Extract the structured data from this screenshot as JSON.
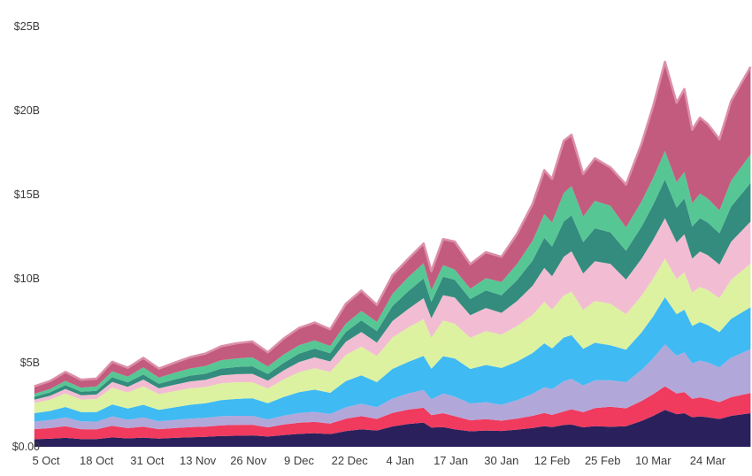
{
  "chart_data": {
    "type": "area",
    "stacked": true,
    "title": "",
    "xlabel": "",
    "ylabel": "",
    "background": "#ffffff",
    "grid": false,
    "legend": "none",
    "axis_label_color": "#3b3b3b",
    "ylim": [
      0,
      25
    ],
    "y_ticks": [
      {
        "value": 0,
        "label": "$0.00"
      },
      {
        "value": 5,
        "label": "$5B"
      },
      {
        "value": 10,
        "label": "$10B"
      },
      {
        "value": 15,
        "label": "$15B"
      },
      {
        "value": 20,
        "label": "$20B"
      },
      {
        "value": 25,
        "label": "$25B"
      }
    ],
    "x_unit": "days (day 0 = 2 Oct, daily series, values in $ billions)",
    "x_ticks": [
      {
        "day": 3,
        "label": "5 Oct"
      },
      {
        "day": 16,
        "label": "18 Oct"
      },
      {
        "day": 29,
        "label": "31 Oct"
      },
      {
        "day": 42,
        "label": "13 Nov"
      },
      {
        "day": 55,
        "label": "26 Nov"
      },
      {
        "day": 68,
        "label": "9 Dec"
      },
      {
        "day": 81,
        "label": "22 Dec"
      },
      {
        "day": 94,
        "label": "4 Jan"
      },
      {
        "day": 107,
        "label": "17 Jan"
      },
      {
        "day": 120,
        "label": "30 Jan"
      },
      {
        "day": 133,
        "label": "12 Feb"
      },
      {
        "day": 146,
        "label": "25 Feb"
      },
      {
        "day": 159,
        "label": "10 Mar"
      },
      {
        "day": 173,
        "label": "24 Mar"
      }
    ],
    "days": [
      0,
      4,
      8,
      12,
      16,
      20,
      24,
      28,
      32,
      36,
      40,
      44,
      48,
      52,
      56,
      60,
      64,
      68,
      72,
      76,
      80,
      84,
      88,
      92,
      96,
      100,
      102,
      105,
      108,
      112,
      116,
      120,
      124,
      128,
      131,
      133,
      136,
      138,
      141,
      144,
      148,
      152,
      156,
      159,
      162,
      165,
      167,
      169,
      171,
      173,
      176,
      179,
      184
    ],
    "top_edge_highlight": "#dc8fa8",
    "series": [
      {
        "name": "dark-navy",
        "color": "#2a215c",
        "values": [
          0.45,
          0.48,
          0.53,
          0.46,
          0.46,
          0.56,
          0.5,
          0.55,
          0.49,
          0.53,
          0.57,
          0.59,
          0.64,
          0.66,
          0.68,
          0.61,
          0.7,
          0.77,
          0.81,
          0.76,
          0.93,
          1.04,
          0.97,
          1.21,
          1.36,
          1.44,
          1.14,
          1.17,
          1.04,
          0.92,
          0.97,
          0.94,
          1.02,
          1.12,
          1.23,
          1.17,
          1.3,
          1.32,
          1.16,
          1.23,
          1.19,
          1.22,
          1.54,
          1.84,
          2.2,
          1.94,
          2.0,
          1.76,
          1.81,
          1.76,
          1.65,
          1.84,
          2.0
        ]
      },
      {
        "name": "crimson",
        "color": "#f03a5e",
        "values": [
          0.6,
          0.63,
          0.69,
          0.59,
          0.58,
          0.69,
          0.61,
          0.65,
          0.56,
          0.58,
          0.6,
          0.61,
          0.64,
          0.64,
          0.63,
          0.55,
          0.62,
          0.66,
          0.67,
          0.62,
          0.74,
          0.78,
          0.69,
          0.8,
          0.85,
          0.88,
          0.74,
          0.83,
          0.78,
          0.66,
          0.67,
          0.62,
          0.66,
          0.72,
          0.78,
          0.73,
          0.8,
          0.91,
          0.9,
          1.07,
          1.19,
          1.07,
          1.18,
          1.29,
          1.4,
          1.23,
          1.26,
          1.1,
          1.13,
          1.09,
          1.01,
          1.11,
          1.2
        ]
      },
      {
        "name": "lavender",
        "color": "#b2a7d9",
        "values": [
          0.45,
          0.48,
          0.53,
          0.46,
          0.46,
          0.56,
          0.5,
          0.55,
          0.47,
          0.49,
          0.51,
          0.52,
          0.54,
          0.54,
          0.53,
          0.47,
          0.53,
          0.58,
          0.6,
          0.57,
          0.68,
          0.75,
          0.7,
          0.86,
          0.96,
          1.06,
          0.95,
          1.17,
          1.17,
          1.0,
          1.01,
          0.94,
          1.1,
          1.31,
          1.54,
          1.53,
          1.8,
          1.82,
          1.58,
          1.65,
          1.58,
          1.55,
          1.86,
          2.15,
          2.5,
          2.25,
          2.36,
          2.1,
          2.19,
          2.16,
          2.07,
          2.35,
          2.6
        ]
      },
      {
        "name": "sky-blue",
        "color": "#3fbaf3",
        "values": [
          0.5,
          0.54,
          0.62,
          0.56,
          0.57,
          0.71,
          0.67,
          0.75,
          0.68,
          0.75,
          0.82,
          0.87,
          0.96,
          1.01,
          1.05,
          0.96,
          1.11,
          1.24,
          1.32,
          1.26,
          1.56,
          1.68,
          1.49,
          1.76,
          1.88,
          2.03,
          1.81,
          2.22,
          2.27,
          2.05,
          2.22,
          2.19,
          2.29,
          2.43,
          2.61,
          2.42,
          2.6,
          2.59,
          2.19,
          2.24,
          2.08,
          1.94,
          2.23,
          2.49,
          2.8,
          2.47,
          2.54,
          2.23,
          2.29,
          2.23,
          2.09,
          2.31,
          2.5
        ]
      },
      {
        "name": "pale-lime",
        "color": "#dcf2a0",
        "values": [
          0.6,
          0.67,
          0.8,
          0.74,
          0.77,
          0.99,
          0.95,
          1.1,
          0.93,
          0.96,
          0.98,
          0.97,
          1.0,
          0.99,
          0.95,
          0.88,
          1.04,
          1.19,
          1.27,
          1.24,
          1.55,
          1.71,
          1.55,
          1.87,
          2.04,
          2.18,
          1.85,
          2.12,
          2.06,
          1.86,
          2.01,
          1.99,
          2.11,
          2.26,
          2.46,
          2.31,
          2.5,
          2.59,
          2.31,
          2.49,
          2.47,
          2.11,
          2.18,
          2.25,
          2.3,
          2.1,
          2.21,
          1.99,
          2.09,
          2.08,
          2.02,
          2.32,
          2.6
        ]
      },
      {
        "name": "light-pink",
        "color": "#f2bdd2",
        "values": [
          0.2,
          0.23,
          0.27,
          0.26,
          0.27,
          0.35,
          0.34,
          0.4,
          0.35,
          0.38,
          0.41,
          0.43,
          0.47,
          0.48,
          0.5,
          0.46,
          0.54,
          0.6,
          0.65,
          0.63,
          0.78,
          0.87,
          0.8,
          0.98,
          1.1,
          1.25,
          1.15,
          1.51,
          1.56,
          1.34,
          1.38,
          1.29,
          1.49,
          1.74,
          2.02,
          1.98,
          2.3,
          2.4,
          2.17,
          2.36,
          2.37,
          2.06,
          2.2,
          2.3,
          2.4,
          2.17,
          2.27,
          2.02,
          2.11,
          2.08,
          2.0,
          2.27,
          2.5
        ]
      },
      {
        "name": "teal",
        "color": "#338c7d",
        "values": [
          0.18,
          0.2,
          0.23,
          0.21,
          0.22,
          0.28,
          0.26,
          0.3,
          0.27,
          0.31,
          0.34,
          0.36,
          0.4,
          0.43,
          0.45,
          0.4,
          0.45,
          0.5,
          0.52,
          0.49,
          0.59,
          0.69,
          0.68,
          0.89,
          1.05,
          1.17,
          0.98,
          1.1,
          1.05,
          0.96,
          1.04,
          1.04,
          1.24,
          1.5,
          1.79,
          1.77,
          2.1,
          2.14,
          1.86,
          1.96,
          1.88,
          1.71,
          1.91,
          2.09,
          2.3,
          2.06,
          2.14,
          1.9,
          1.98,
          1.94,
          1.86,
          2.09,
          2.3
        ]
      },
      {
        "name": "seafoam",
        "color": "#57c695",
        "values": [
          0.17,
          0.2,
          0.25,
          0.24,
          0.26,
          0.35,
          0.35,
          0.42,
          0.37,
          0.4,
          0.43,
          0.46,
          0.5,
          0.51,
          0.53,
          0.45,
          0.49,
          0.5,
          0.49,
          0.43,
          0.49,
          0.56,
          0.55,
          0.72,
          0.84,
          0.91,
          0.7,
          0.69,
          0.61,
          0.61,
          0.73,
          0.79,
          0.96,
          1.18,
          1.42,
          1.43,
          1.7,
          1.74,
          1.53,
          1.63,
          1.58,
          1.39,
          1.5,
          1.6,
          1.7,
          1.52,
          1.58,
          1.4,
          1.46,
          1.43,
          1.37,
          1.54,
          1.7
        ]
      },
      {
        "name": "rose",
        "color": "#c35b7e",
        "values": [
          0.45,
          0.48,
          0.53,
          0.47,
          0.47,
          0.57,
          0.52,
          0.57,
          0.53,
          0.6,
          0.67,
          0.74,
          0.83,
          0.9,
          0.95,
          0.84,
          0.95,
          1.03,
          1.06,
          0.99,
          1.18,
          1.21,
          1.01,
          1.11,
          1.09,
          1.17,
          1.13,
          1.54,
          1.67,
          1.47,
          1.55,
          1.5,
          1.79,
          2.18,
          2.6,
          2.59,
          3.1,
          3.05,
          2.53,
          2.53,
          2.28,
          2.55,
          3.44,
          4.28,
          5.3,
          4.73,
          4.92,
          4.36,
          4.52,
          4.43,
          4.22,
          4.74,
          5.2
        ]
      }
    ]
  }
}
